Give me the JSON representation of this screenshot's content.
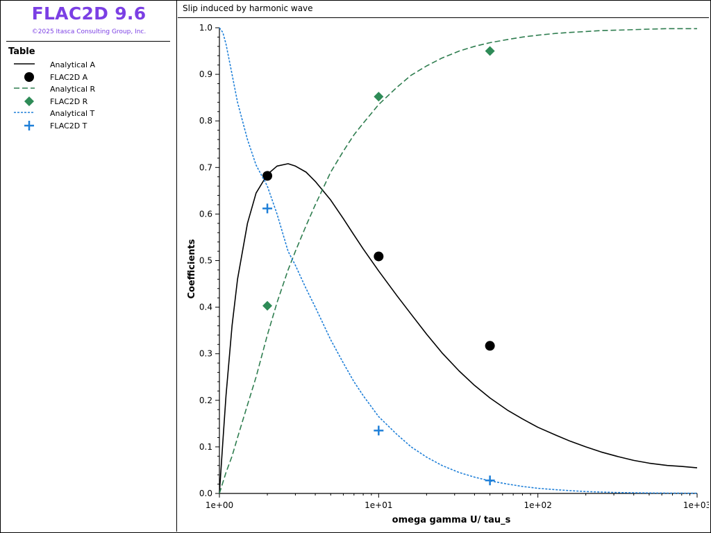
{
  "sidebar": {
    "app_title": "FLAC2D 9.6",
    "copyright": "©2025 Itasca Consulting Group, Inc.",
    "legend_title": "Table",
    "legend": [
      {
        "label": "Analytical A",
        "kind": "line",
        "style": "solid",
        "color": "#000000"
      },
      {
        "label": "FLAC2D A",
        "kind": "marker",
        "marker": "circle",
        "color": "#000000"
      },
      {
        "label": "Analytical R",
        "kind": "line",
        "style": "dashed",
        "color": "#2e7d4f"
      },
      {
        "label": "FLAC2D R",
        "kind": "marker",
        "marker": "diamond",
        "color": "#2e8b57"
      },
      {
        "label": "Analytical T",
        "kind": "line",
        "style": "dotted",
        "color": "#1e7fd8"
      },
      {
        "label": "FLAC2D T",
        "kind": "marker",
        "marker": "plus",
        "color": "#1e7fd8"
      }
    ]
  },
  "chart_data": {
    "type": "scatter",
    "title": "Slip induced by harmonic wave",
    "xlabel": "omega gamma U/ tau_s",
    "ylabel": "Coefficients",
    "xscale": "log",
    "xlim": [
      1,
      1000
    ],
    "ylim": [
      0,
      1.0
    ],
    "xticks": [
      1,
      10,
      100,
      1000
    ],
    "xtick_labels": [
      "1e+00",
      "1e+01",
      "1e+02",
      "1e+03"
    ],
    "yticks": [
      0,
      0.1,
      0.2,
      0.3,
      0.4,
      0.5,
      0.6,
      0.7,
      0.8,
      0.9,
      1.0
    ],
    "ytick_labels": [
      "0.0",
      "0.1",
      "0.2",
      "0.3",
      "0.4",
      "0.5",
      "0.6",
      "0.7",
      "0.8",
      "0.9",
      "1.0"
    ],
    "grid": false,
    "series": [
      {
        "name": "Analytical A",
        "kind": "line",
        "color": "#000000",
        "dash": "",
        "x": [
          1,
          1.05,
          1.1,
          1.2,
          1.3,
          1.5,
          1.7,
          2,
          2.3,
          2.7,
          3,
          3.5,
          4,
          5,
          6,
          7,
          8,
          10,
          13,
          16,
          20,
          25,
          32,
          40,
          50,
          65,
          80,
          100,
          130,
          160,
          200,
          250,
          320,
          400,
          500,
          650,
          800,
          1000
        ],
        "y": [
          0.0,
          0.11,
          0.21,
          0.36,
          0.46,
          0.58,
          0.645,
          0.685,
          0.703,
          0.708,
          0.703,
          0.69,
          0.67,
          0.63,
          0.59,
          0.555,
          0.525,
          0.478,
          0.425,
          0.385,
          0.342,
          0.302,
          0.263,
          0.232,
          0.205,
          0.178,
          0.16,
          0.142,
          0.125,
          0.112,
          0.1,
          0.089,
          0.079,
          0.071,
          0.065,
          0.06,
          0.058,
          0.055
        ]
      },
      {
        "name": "FLAC2D A",
        "kind": "marker",
        "marker": "circle",
        "color": "#000000",
        "x": [
          2,
          10,
          50
        ],
        "y": [
          0.682,
          0.509,
          0.317
        ]
      },
      {
        "name": "Analytical R",
        "kind": "line",
        "color": "#2e7d4f",
        "dash": "8,4",
        "x": [
          1,
          1.1,
          1.2,
          1.3,
          1.5,
          1.7,
          2,
          2.3,
          2.7,
          3,
          3.5,
          4,
          5,
          6,
          7,
          8,
          10,
          13,
          16,
          20,
          25,
          32,
          40,
          50,
          65,
          80,
          100,
          130,
          160,
          200,
          250,
          320,
          400,
          500,
          650,
          800,
          1000
        ],
        "y": [
          0.0,
          0.045,
          0.08,
          0.12,
          0.19,
          0.25,
          0.34,
          0.41,
          0.48,
          0.52,
          0.575,
          0.62,
          0.69,
          0.735,
          0.77,
          0.795,
          0.835,
          0.872,
          0.898,
          0.918,
          0.935,
          0.95,
          0.96,
          0.968,
          0.975,
          0.98,
          0.984,
          0.988,
          0.99,
          0.992,
          0.994,
          0.995,
          0.996,
          0.997,
          0.998,
          0.998,
          0.998
        ]
      },
      {
        "name": "FLAC2D R",
        "kind": "marker",
        "marker": "diamond",
        "color": "#2e8b57",
        "x": [
          2,
          10,
          50
        ],
        "y": [
          0.403,
          0.852,
          0.95
        ]
      },
      {
        "name": "Analytical T",
        "kind": "line",
        "color": "#1e7fd8",
        "dash": "3,2",
        "x": [
          1,
          1.05,
          1.1,
          1.2,
          1.3,
          1.5,
          1.7,
          2,
          2.3,
          2.7,
          3,
          3.5,
          4,
          5,
          6,
          7,
          8,
          10,
          13,
          16,
          20,
          25,
          32,
          40,
          50,
          65,
          80,
          100,
          130,
          160,
          200,
          250,
          320,
          400,
          500,
          650,
          800,
          1000
        ],
        "y": [
          1.0,
          0.99,
          0.965,
          0.9,
          0.84,
          0.76,
          0.705,
          0.66,
          0.6,
          0.52,
          0.49,
          0.44,
          0.4,
          0.33,
          0.28,
          0.24,
          0.21,
          0.165,
          0.127,
          0.1,
          0.078,
          0.06,
          0.045,
          0.035,
          0.027,
          0.02,
          0.015,
          0.011,
          0.008,
          0.006,
          0.004,
          0.003,
          0.002,
          0.0015,
          0.001,
          0.0008,
          0.0006,
          0.0005
        ]
      },
      {
        "name": "FLAC2D T",
        "kind": "marker",
        "marker": "plus",
        "color": "#1e7fd8",
        "x": [
          2,
          10,
          50
        ],
        "y": [
          0.612,
          0.135,
          0.028
        ]
      }
    ]
  }
}
